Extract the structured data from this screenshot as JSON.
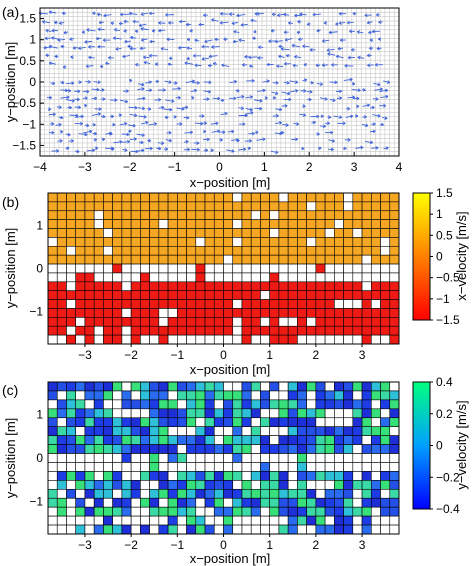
{
  "chart_data": [
    {
      "panel": "(a)",
      "type": "quiver",
      "xlabel": "x−position [m]",
      "ylabel": "y−position [m]",
      "xlim": [
        -4,
        4
      ],
      "ylim": [
        -1.75,
        1.75
      ],
      "xticks": [
        -4,
        -3,
        -2,
        -1,
        0,
        1,
        2,
        3,
        4
      ],
      "xtick_labels": [
        "−4",
        "−3",
        "−2",
        "−1",
        "0",
        "1",
        "2",
        "3",
        "4"
      ],
      "yticks": [
        -1.5,
        -1,
        -0.5,
        0,
        0.5,
        1,
        1.5
      ],
      "ytick_labels": [
        "−1.5",
        "−1",
        "−0.5",
        "0",
        "0.5",
        "1",
        "1.5"
      ],
      "grid": true,
      "arrow_color": "#3a5fd9",
      "upper_direction": "negative-x",
      "lower_direction": "positive-x",
      "arrow_speed_range": [
        0.3,
        1.0
      ]
    },
    {
      "panel": "(b)",
      "type": "heatmap",
      "xlabel": "x−position [m]",
      "ylabel": "y−position [m]",
      "xlim": [
        -3.8,
        3.8
      ],
      "ylim": [
        -1.75,
        1.75
      ],
      "xticks": [
        -3,
        -2,
        -1,
        0,
        1,
        2,
        3
      ],
      "xtick_labels": [
        "−3",
        "−2",
        "−1",
        "0",
        "1",
        "2",
        "3"
      ],
      "yticks": [
        -1,
        0,
        1
      ],
      "ytick_labels": [
        "−1",
        "0",
        "1"
      ],
      "grid_cells": [
        38,
        17
      ],
      "upper_value_ms": 0.65,
      "lower_value_ms": -1.1,
      "colorbar": {
        "label": "x−velocity [m/s]",
        "range": [
          -1.5,
          1.5
        ],
        "ticks": [
          "1.5",
          "1",
          "0.5",
          "0",
          "−0.5",
          "−1",
          "−1.5"
        ],
        "colors": [
          "#ff0000",
          "#ff8000",
          "#ffff00"
        ]
      }
    },
    {
      "panel": "(c)",
      "type": "heatmap",
      "xlabel": "x−position [m]",
      "ylabel": "y−position [m]",
      "xlim": [
        -3.8,
        3.8
      ],
      "ylim": [
        -1.75,
        1.75
      ],
      "xticks": [
        -3,
        -2,
        -1,
        0,
        1,
        2,
        3
      ],
      "xtick_labels": [
        "−3",
        "−2",
        "−1",
        "0",
        "1",
        "2",
        "3"
      ],
      "yticks": [
        -1,
        0,
        1
      ],
      "ytick_labels": [
        "−1",
        "0",
        "1"
      ],
      "grid_cells": [
        38,
        17
      ],
      "colorbar": {
        "label": "y−velocity [m/s]",
        "range": [
          -0.4,
          0.4
        ],
        "ticks": [
          "0.4",
          "0.2",
          "0",
          "−0.2",
          "−0.4"
        ],
        "colors": [
          "#0000ff",
          "#00a0ff",
          "#00ff80"
        ]
      }
    }
  ]
}
